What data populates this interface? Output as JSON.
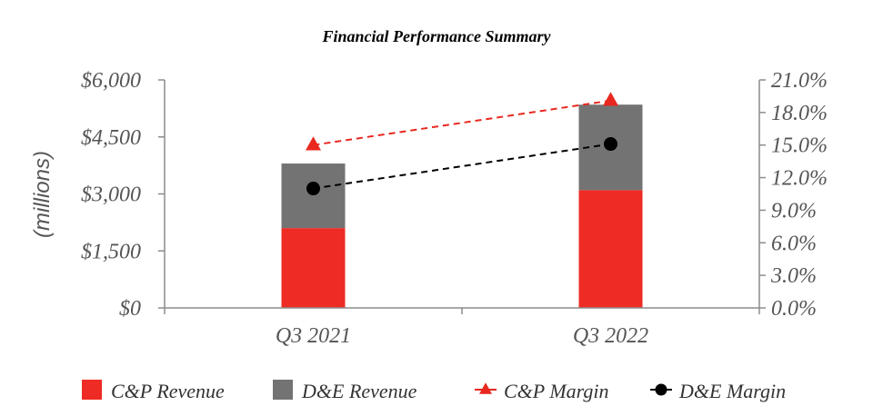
{
  "chart_data": {
    "type": "bar",
    "stacked": true,
    "title": "Financial Performance Summary",
    "categories": [
      "Q3 2021",
      "Q3 2022"
    ],
    "ylabel": "(millions)",
    "ylim": [
      0,
      6000
    ],
    "y_ticks": [
      0,
      1500,
      3000,
      4500,
      6000
    ],
    "y_tick_labels": [
      "$0",
      "$1,500",
      "$3,000",
      "$4,500",
      "$6,000"
    ],
    "y2lim": [
      0,
      21
    ],
    "y2_ticks": [
      0,
      3,
      6,
      9,
      12,
      15,
      18,
      21
    ],
    "y2_tick_labels": [
      "0.0%",
      "3.0%",
      "6.0%",
      "9.0%",
      "12.0%",
      "15.0%",
      "18.0%",
      "21.0%"
    ],
    "series": [
      {
        "name": "C&P Revenue",
        "kind": "bar",
        "axis": "left",
        "color": "#ee2b24",
        "values": [
          2100,
          3100
        ]
      },
      {
        "name": "D&E Revenue",
        "kind": "bar",
        "axis": "left",
        "color": "#737373",
        "values": [
          1700,
          2250
        ]
      },
      {
        "name": "C&P Margin",
        "kind": "line",
        "axis": "right",
        "color": "#e8281f",
        "marker": "triangle",
        "dashed": true,
        "values": [
          15.0,
          19.1
        ]
      },
      {
        "name": "D&E Margin",
        "kind": "line",
        "axis": "right",
        "color": "#000000",
        "marker": "circle",
        "dashed": true,
        "values": [
          11.0,
          15.1
        ]
      }
    ],
    "legend_position": "bottom"
  }
}
